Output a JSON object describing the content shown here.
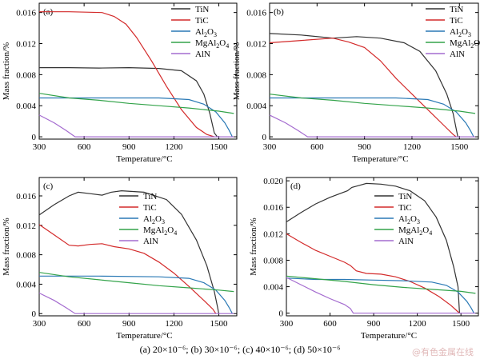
{
  "caption": "(a) 20×10⁻⁶; (b) 30×10⁻⁶; (c) 40×10⁻⁶; (d) 50×10⁻⁶",
  "watermark": "@有色金属在线",
  "colors": {
    "TiN": "#333333",
    "TiC": "#d32a2a",
    "Al2O3": "#2a79b5",
    "MgAl2O4": "#33a34a",
    "AlN": "#a46bcf"
  },
  "chart_data": [
    {
      "type": "line",
      "panel_label": "(a)",
      "xlabel": "Temperature/°C",
      "ylabel": "Mass fraction/%",
      "xlim": [
        300,
        1620
      ],
      "ylim": [
        -0.0003,
        0.0172
      ],
      "xticks": [
        300,
        600,
        900,
        1200,
        1500
      ],
      "yticks": [
        0,
        0.004,
        0.008,
        0.012,
        0.016
      ],
      "yticklabels": [
        "0",
        "0.004",
        "0.008",
        "0.012",
        "0.016"
      ],
      "legend_position": "top-right",
      "series": [
        {
          "name": "TiN",
          "key": "TiN",
          "points": [
            [
              300,
              0.0089
            ],
            [
              500,
              0.0089
            ],
            [
              700,
              0.00885
            ],
            [
              900,
              0.0089
            ],
            [
              1100,
              0.0088
            ],
            [
              1250,
              0.0085
            ],
            [
              1350,
              0.0072
            ],
            [
              1400,
              0.0055
            ],
            [
              1440,
              0.003
            ],
            [
              1470,
              0.0005
            ],
            [
              1490,
              0
            ]
          ]
        },
        {
          "name": "TiC",
          "key": "TiC",
          "points": [
            [
              300,
              0.0161
            ],
            [
              500,
              0.0161
            ],
            [
              720,
              0.016
            ],
            [
              800,
              0.0155
            ],
            [
              880,
              0.0145
            ],
            [
              950,
              0.0128
            ],
            [
              1050,
              0.0098
            ],
            [
              1150,
              0.0065
            ],
            [
              1250,
              0.0035
            ],
            [
              1350,
              0.0012
            ],
            [
              1420,
              0.0003
            ],
            [
              1470,
              0
            ]
          ]
        },
        {
          "name": "Al2O3",
          "key": "Al2O3",
          "points": [
            [
              300,
              0.005
            ],
            [
              700,
              0.005
            ],
            [
              1100,
              0.005
            ],
            [
              1300,
              0.0048
            ],
            [
              1400,
              0.0042
            ],
            [
              1480,
              0.0032
            ],
            [
              1540,
              0.0018
            ],
            [
              1570,
              0.0008
            ],
            [
              1590,
              0
            ]
          ]
        },
        {
          "name": "MgAl2O4",
          "key": "MgAl2O4",
          "points": [
            [
              300,
              0.0056
            ],
            [
              500,
              0.005
            ],
            [
              700,
              0.0047
            ],
            [
              900,
              0.0043
            ],
            [
              1100,
              0.004
            ],
            [
              1300,
              0.0037
            ],
            [
              1500,
              0.0033
            ],
            [
              1600,
              0.003
            ]
          ]
        },
        {
          "name": "AlN",
          "key": "AlN",
          "points": [
            [
              300,
              0.0028
            ],
            [
              400,
              0.0018
            ],
            [
              480,
              0.0008
            ],
            [
              540,
              0
            ],
            [
              1000,
              0
            ],
            [
              1600,
              0
            ]
          ]
        }
      ]
    },
    {
      "type": "line",
      "panel_label": "(b)",
      "xlabel": "Temperature/°C",
      "ylabel": "Mass fraction/%",
      "xlim": [
        300,
        1620
      ],
      "ylim": [
        -0.0003,
        0.0172
      ],
      "xticks": [
        300,
        600,
        900,
        1200,
        1500
      ],
      "yticks": [
        0,
        0.004,
        0.008,
        0.012,
        0.016
      ],
      "yticklabels": [
        "0",
        "0.004",
        "0.008",
        "0.012",
        "0.016"
      ],
      "legend_position": "top-right",
      "series": [
        {
          "name": "TiN",
          "key": "TiN",
          "points": [
            [
              300,
              0.0133
            ],
            [
              500,
              0.0131
            ],
            [
              700,
              0.0127
            ],
            [
              850,
              0.0129
            ],
            [
              1000,
              0.0127
            ],
            [
              1150,
              0.0121
            ],
            [
              1250,
              0.011
            ],
            [
              1350,
              0.0085
            ],
            [
              1420,
              0.0055
            ],
            [
              1460,
              0.003
            ],
            [
              1480,
              0.001
            ],
            [
              1490,
              0
            ]
          ]
        },
        {
          "name": "TiC",
          "key": "TiC",
          "points": [
            [
              300,
              0.0121
            ],
            [
              500,
              0.0124
            ],
            [
              700,
              0.0127
            ],
            [
              800,
              0.0122
            ],
            [
              900,
              0.0115
            ],
            [
              1000,
              0.0098
            ],
            [
              1100,
              0.0075
            ],
            [
              1200,
              0.0055
            ],
            [
              1300,
              0.0035
            ],
            [
              1400,
              0.0015
            ],
            [
              1460,
              0.0003
            ],
            [
              1480,
              0
            ]
          ]
        },
        {
          "name": "Al2O3",
          "key": "Al2O3",
          "points": [
            [
              300,
              0.005
            ],
            [
              700,
              0.005
            ],
            [
              1100,
              0.005
            ],
            [
              1300,
              0.0048
            ],
            [
              1400,
              0.0042
            ],
            [
              1480,
              0.0032
            ],
            [
              1540,
              0.0018
            ],
            [
              1570,
              0.0008
            ],
            [
              1590,
              0
            ]
          ]
        },
        {
          "name": "MgAl2O4",
          "key": "MgAl2O4",
          "points": [
            [
              300,
              0.0055
            ],
            [
              500,
              0.005
            ],
            [
              700,
              0.0047
            ],
            [
              900,
              0.0043
            ],
            [
              1100,
              0.004
            ],
            [
              1300,
              0.0037
            ],
            [
              1500,
              0.0033
            ],
            [
              1600,
              0.003
            ]
          ]
        },
        {
          "name": "AlN",
          "key": "AlN",
          "points": [
            [
              300,
              0.0028
            ],
            [
              400,
              0.0018
            ],
            [
              480,
              0.0008
            ],
            [
              540,
              0
            ],
            [
              1000,
              0
            ],
            [
              1600,
              0
            ]
          ]
        }
      ]
    },
    {
      "type": "line",
      "panel_label": "(c)",
      "xlabel": "Temperature/°C",
      "ylabel": "Mass fraction/%",
      "xlim": [
        300,
        1620
      ],
      "ylim": [
        -0.0003,
        0.0185
      ],
      "xticks": [
        300,
        600,
        900,
        1200,
        1500
      ],
      "yticks": [
        0,
        0.004,
        0.008,
        0.012,
        0.016
      ],
      "yticklabels": [
        "0",
        "0.004",
        "0.008",
        "0.012",
        "0.016"
      ],
      "legend_position": "top-right",
      "series": [
        {
          "name": "TiN",
          "key": "TiN",
          "points": [
            [
              300,
              0.0134
            ],
            [
              400,
              0.0148
            ],
            [
              500,
              0.016
            ],
            [
              560,
              0.0165
            ],
            [
              640,
              0.0163
            ],
            [
              720,
              0.0161
            ],
            [
              780,
              0.0165
            ],
            [
              850,
              0.0167
            ],
            [
              1000,
              0.0165
            ],
            [
              1150,
              0.0155
            ],
            [
              1250,
              0.0135
            ],
            [
              1350,
              0.01
            ],
            [
              1420,
              0.0065
            ],
            [
              1470,
              0.003
            ],
            [
              1490,
              0.001
            ],
            [
              1500,
              0
            ]
          ]
        },
        {
          "name": "TiC",
          "key": "TiC",
          "points": [
            [
              300,
              0.0121
            ],
            [
              400,
              0.0107
            ],
            [
              500,
              0.0093
            ],
            [
              560,
              0.0092
            ],
            [
              640,
              0.0094
            ],
            [
              720,
              0.0095
            ],
            [
              800,
              0.0091
            ],
            [
              900,
              0.0088
            ],
            [
              1000,
              0.0082
            ],
            [
              1100,
              0.007
            ],
            [
              1200,
              0.0055
            ],
            [
              1300,
              0.0037
            ],
            [
              1400,
              0.0018
            ],
            [
              1460,
              0.0006
            ],
            [
              1480,
              0
            ]
          ]
        },
        {
          "name": "Al2O3",
          "key": "Al2O3",
          "points": [
            [
              300,
              0.0051
            ],
            [
              700,
              0.0051
            ],
            [
              1100,
              0.005
            ],
            [
              1300,
              0.0048
            ],
            [
              1400,
              0.0042
            ],
            [
              1480,
              0.0032
            ],
            [
              1540,
              0.0018
            ],
            [
              1570,
              0.0008
            ],
            [
              1590,
              0
            ]
          ]
        },
        {
          "name": "MgAl2O4",
          "key": "MgAl2O4",
          "points": [
            [
              300,
              0.0056
            ],
            [
              500,
              0.005
            ],
            [
              700,
              0.0046
            ],
            [
              900,
              0.0042
            ],
            [
              1100,
              0.0038
            ],
            [
              1300,
              0.0035
            ],
            [
              1500,
              0.0032
            ],
            [
              1600,
              0.003
            ]
          ]
        },
        {
          "name": "AlN",
          "key": "AlN",
          "points": [
            [
              300,
              0.0028
            ],
            [
              400,
              0.0018
            ],
            [
              480,
              0.0008
            ],
            [
              540,
              0
            ],
            [
              1000,
              0
            ],
            [
              1600,
              0
            ]
          ]
        }
      ]
    },
    {
      "type": "line",
      "panel_label": "(d)",
      "xlabel": "Temperature/°C",
      "ylabel": "Mass fraction/%",
      "xlim": [
        300,
        1620
      ],
      "ylim": [
        -0.0004,
        0.0205
      ],
      "xticks": [
        300,
        600,
        900,
        1200,
        1500
      ],
      "yticks": [
        0,
        0.004,
        0.008,
        0.012,
        0.016,
        0.02
      ],
      "yticklabels": [
        "0",
        "0.004",
        "0.008",
        "0.012",
        "0.016",
        "0.020"
      ],
      "legend_position": "top-right",
      "series": [
        {
          "name": "TiN",
          "key": "TiN",
          "points": [
            [
              300,
              0.0138
            ],
            [
              400,
              0.0152
            ],
            [
              500,
              0.0165
            ],
            [
              600,
              0.0175
            ],
            [
              720,
              0.0185
            ],
            [
              750,
              0.019
            ],
            [
              800,
              0.0193
            ],
            [
              850,
              0.0196
            ],
            [
              950,
              0.0195
            ],
            [
              1050,
              0.0192
            ],
            [
              1150,
              0.0185
            ],
            [
              1250,
              0.017
            ],
            [
              1330,
              0.0145
            ],
            [
              1400,
              0.011
            ],
            [
              1450,
              0.007
            ],
            [
              1480,
              0.004
            ],
            [
              1490,
              0
            ]
          ]
        },
        {
          "name": "TiC",
          "key": "TiC",
          "points": [
            [
              300,
              0.012
            ],
            [
              400,
              0.0107
            ],
            [
              500,
              0.0095
            ],
            [
              600,
              0.0086
            ],
            [
              700,
              0.0077
            ],
            [
              740,
              0.0072
            ],
            [
              780,
              0.0064
            ],
            [
              850,
              0.006
            ],
            [
              950,
              0.0059
            ],
            [
              1050,
              0.0055
            ],
            [
              1150,
              0.0048
            ],
            [
              1250,
              0.0038
            ],
            [
              1350,
              0.0025
            ],
            [
              1430,
              0.0012
            ],
            [
              1480,
              0.0002
            ],
            [
              1490,
              0
            ]
          ]
        },
        {
          "name": "Al2O3",
          "key": "Al2O3",
          "points": [
            [
              300,
              0.0053
            ],
            [
              500,
              0.0051
            ],
            [
              700,
              0.0051
            ],
            [
              900,
              0.005
            ],
            [
              1100,
              0.0049
            ],
            [
              1300,
              0.0047
            ],
            [
              1400,
              0.0042
            ],
            [
              1480,
              0.0032
            ],
            [
              1540,
              0.0018
            ],
            [
              1570,
              0.0008
            ],
            [
              1590,
              0
            ]
          ]
        },
        {
          "name": "MgAl2O4",
          "key": "MgAl2O4",
          "points": [
            [
              300,
              0.0056
            ],
            [
              500,
              0.0052
            ],
            [
              700,
              0.0048
            ],
            [
              900,
              0.0043
            ],
            [
              1100,
              0.0039
            ],
            [
              1300,
              0.0036
            ],
            [
              1500,
              0.0033
            ],
            [
              1600,
              0.003
            ]
          ]
        },
        {
          "name": "AlN",
          "key": "AlN",
          "points": [
            [
              300,
              0.0054
            ],
            [
              400,
              0.0043
            ],
            [
              500,
              0.0032
            ],
            [
              600,
              0.0022
            ],
            [
              700,
              0.0013
            ],
            [
              740,
              0.0007
            ],
            [
              760,
              0
            ],
            [
              1000,
              0
            ],
            [
              1600,
              0
            ]
          ]
        }
      ]
    }
  ]
}
